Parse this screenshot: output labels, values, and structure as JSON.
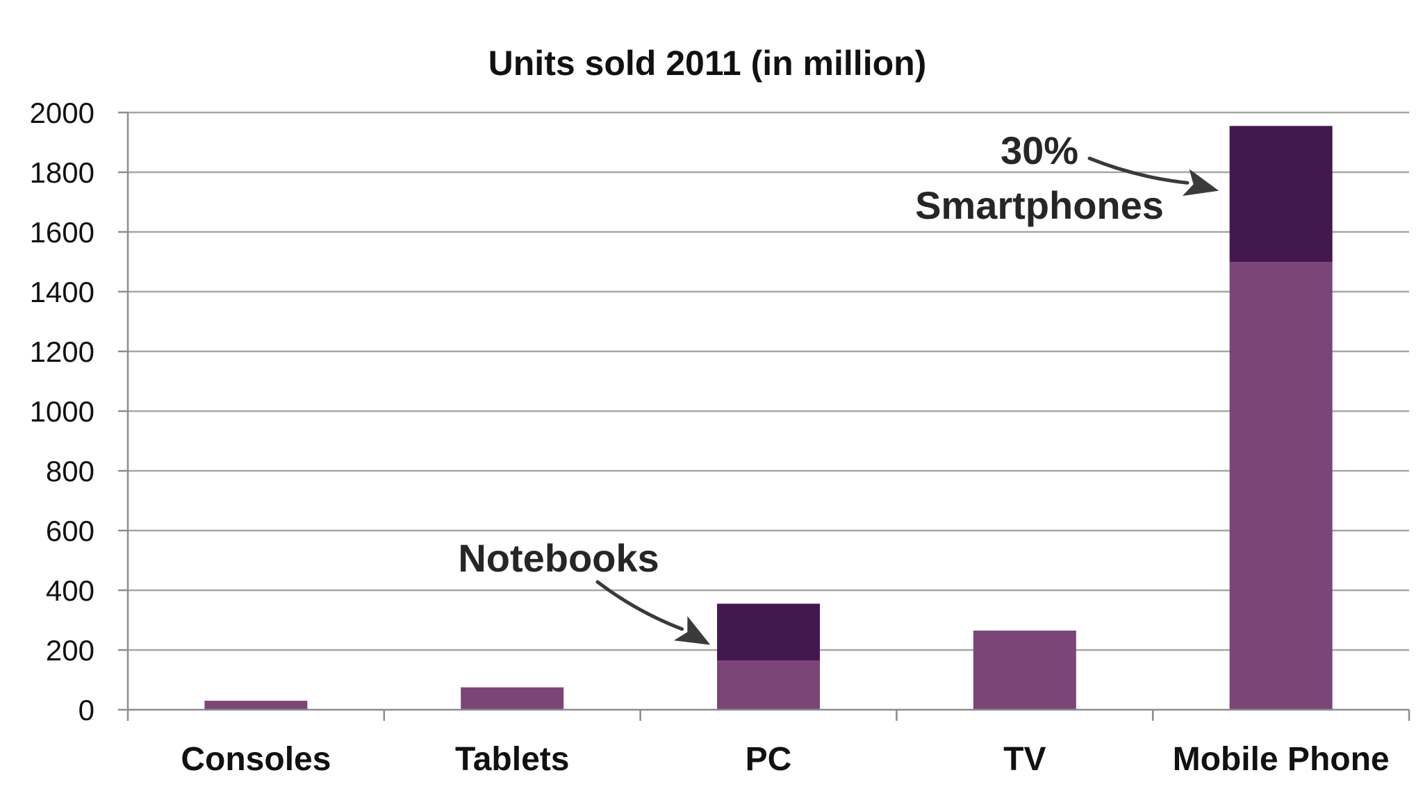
{
  "chart_data": {
    "type": "bar",
    "stacked": true,
    "title": "Units sold 2011 (in million)",
    "xlabel": "",
    "ylabel": "",
    "categories": [
      "Consoles",
      "Tablets",
      "PC",
      "TV",
      "Mobile Phone"
    ],
    "series": [
      {
        "values": [
          30,
          75,
          165,
          265,
          1500
        ],
        "color": "#7b4677"
      },
      {
        "values": [
          0,
          0,
          190,
          0,
          455
        ],
        "color": "#43184f"
      }
    ],
    "ylim": [
      0,
      2000
    ],
    "yticks": [
      0,
      200,
      400,
      600,
      800,
      1000,
      1200,
      1400,
      1600,
      1800,
      2000
    ],
    "grid": true,
    "legend": "none",
    "annotations": [
      {
        "lines": [
          "Notebooks"
        ],
        "target_category": "PC",
        "target_value": 290
      },
      {
        "lines": [
          "30%",
          "Smartphones"
        ],
        "target_category": "Mobile Phone",
        "target_value": 1800
      }
    ]
  }
}
